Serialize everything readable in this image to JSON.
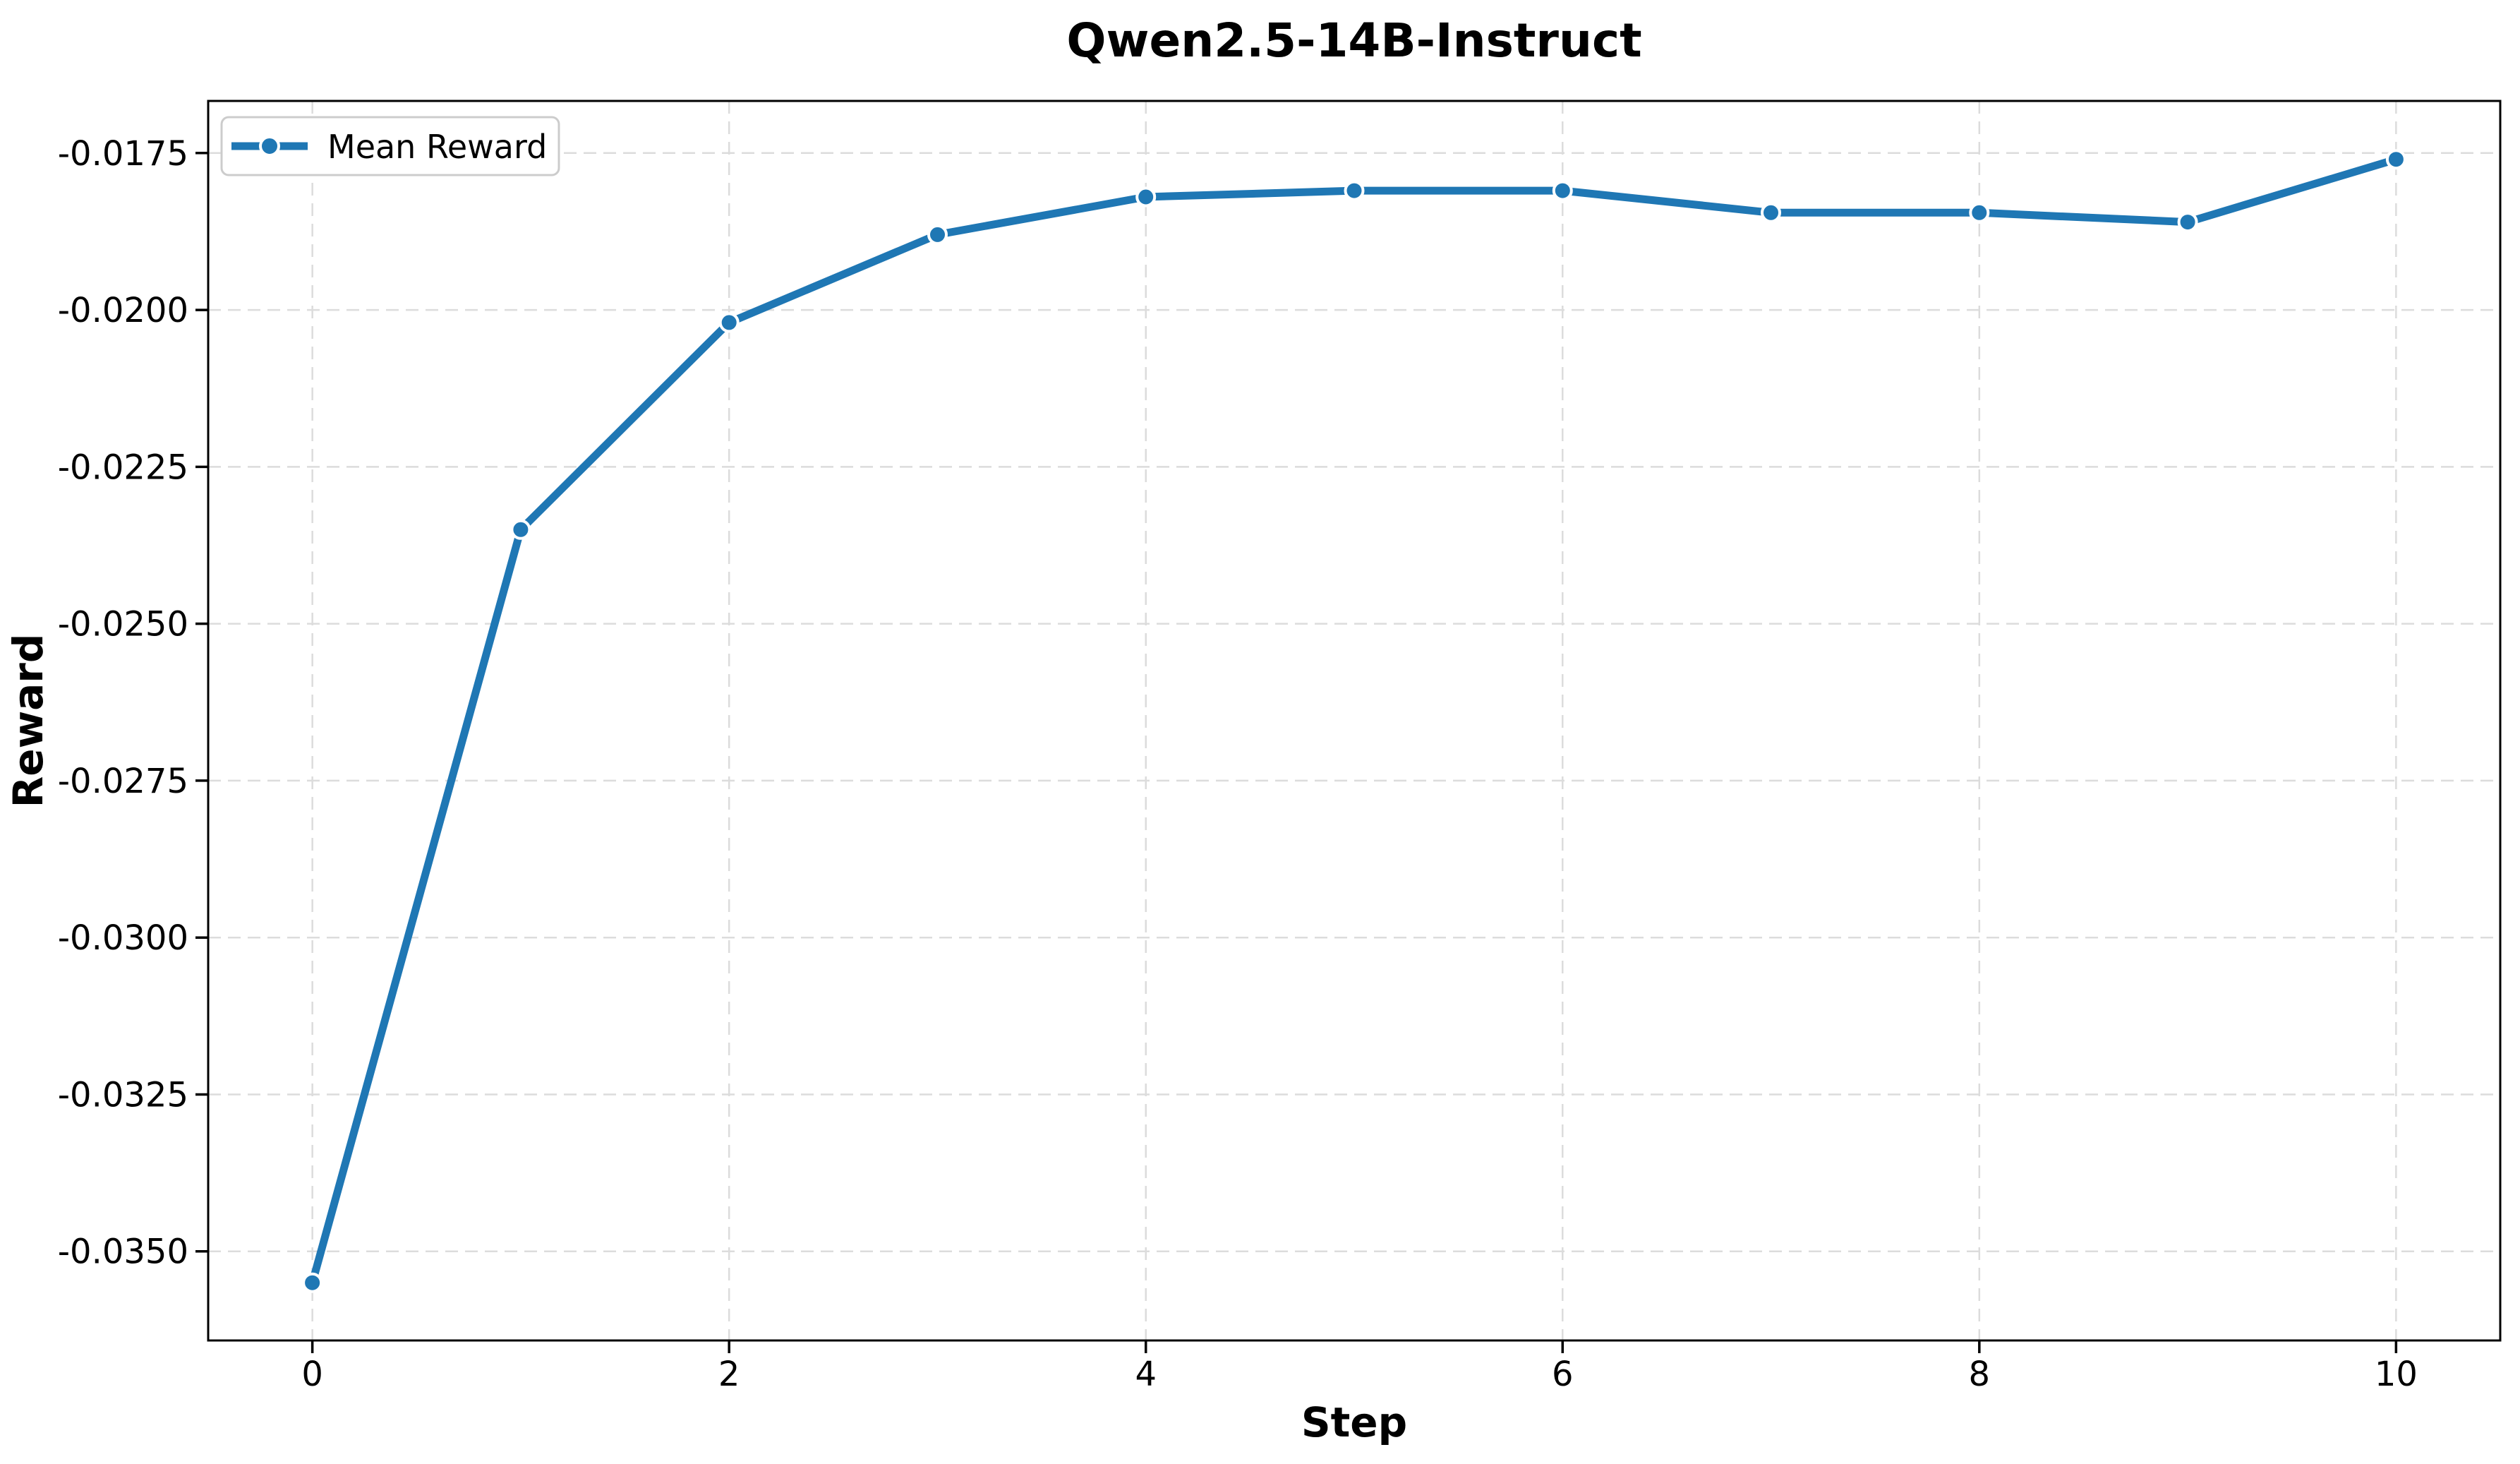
{
  "title": "Qwen2.5-14B-Instruct",
  "colors": {
    "line": "#1f77b4",
    "marker_fill": "#1f77b4",
    "marker_edge": "#ffffff",
    "grid": "#dcdcdc",
    "spine": "#000000",
    "text": "#000000",
    "legend_border": "#cccccc",
    "background": "#ffffff"
  },
  "legend": {
    "label": "Mean Reward",
    "position": "upper left"
  },
  "chart_data": {
    "type": "line",
    "title": "Qwen2.5-14B-Instruct",
    "xlabel": "Step",
    "ylabel": "Reward",
    "series": [
      {
        "name": "Mean Reward",
        "x": [
          0,
          1,
          2,
          3,
          4,
          5,
          6,
          7,
          8,
          9,
          10
        ],
        "y": [
          -0.0355,
          -0.0235,
          -0.0202,
          -0.0188,
          -0.0182,
          -0.0181,
          -0.0181,
          -0.01845,
          -0.01845,
          -0.0186,
          -0.0176
        ]
      }
    ],
    "xlim": [
      -0.5,
      10.5
    ],
    "ylim": [
      -0.03642,
      -0.01667
    ],
    "xticks": [
      0,
      2,
      4,
      6,
      8,
      10
    ],
    "xtick_labels": [
      "0",
      "2",
      "4",
      "6",
      "8",
      "10"
    ],
    "yticks": [
      -0.0175,
      -0.02,
      -0.0225,
      -0.025,
      -0.0275,
      -0.03,
      -0.0325,
      -0.035
    ],
    "ytick_labels": [
      "-0.0175",
      "-0.0200",
      "-0.0225",
      "-0.0250",
      "-0.0275",
      "-0.0300",
      "-0.0325",
      "-0.0350"
    ],
    "grid": true,
    "legend_position": "upper left"
  }
}
